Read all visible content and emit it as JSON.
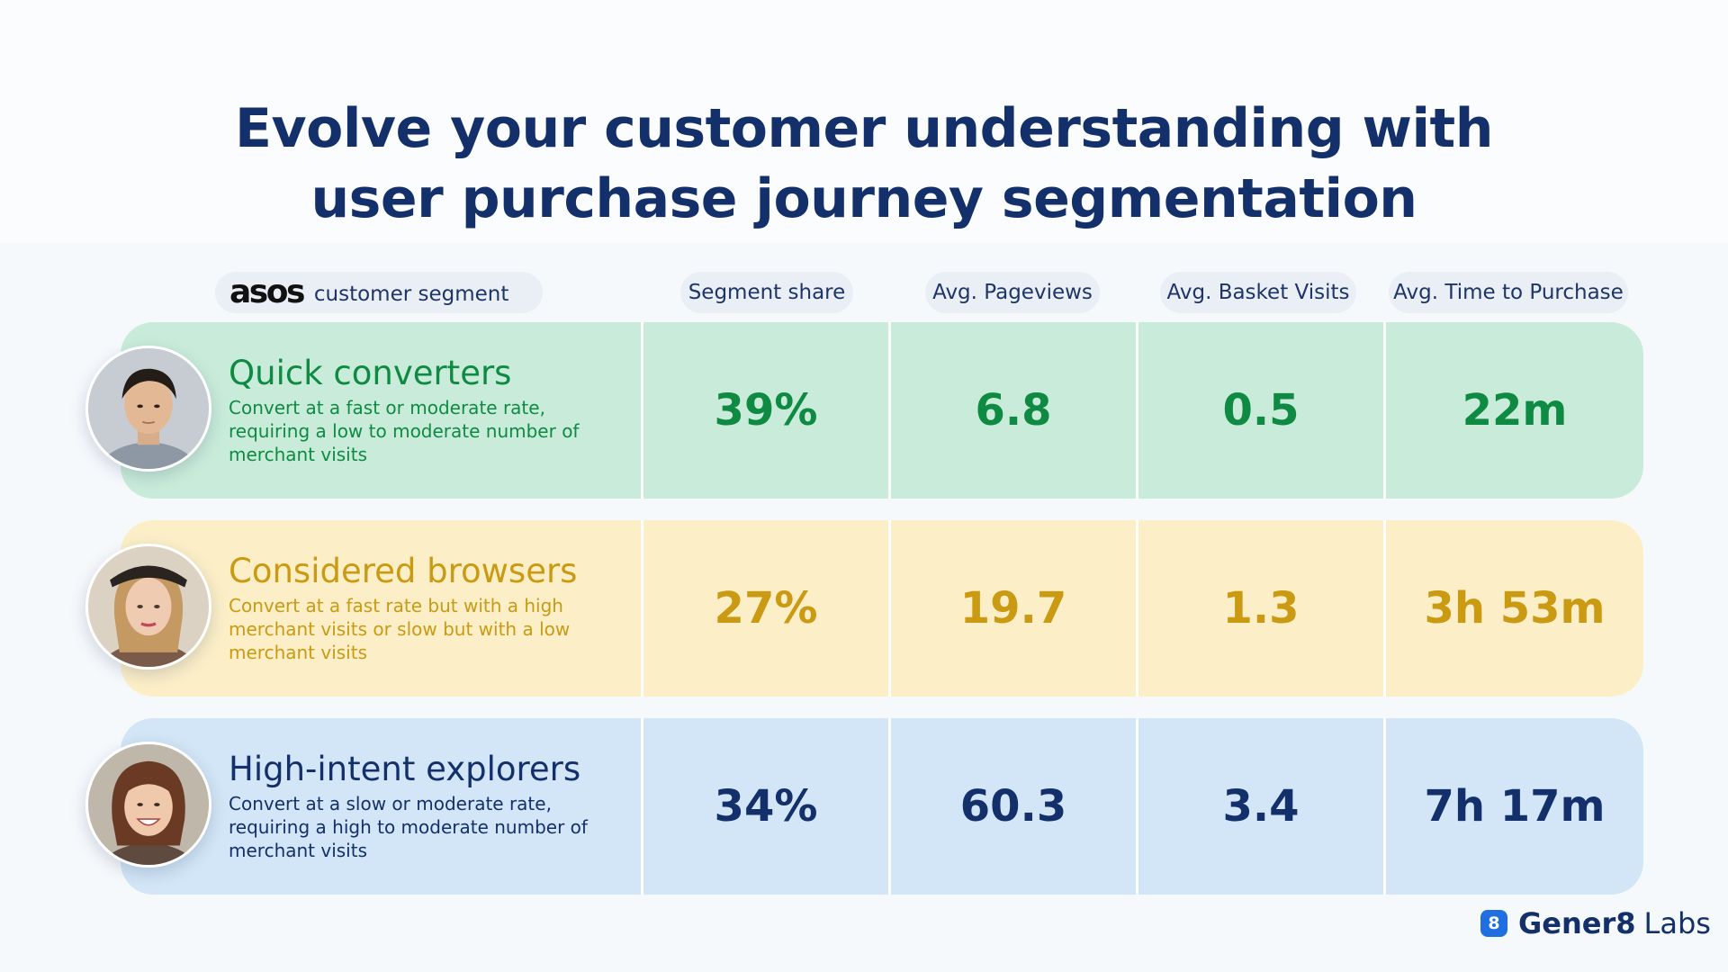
{
  "title_lines": [
    "Evolve your customer understanding with",
    "user purchase journey segmentation"
  ],
  "header": {
    "brand_logo": "asos",
    "segment_label": "customer segment",
    "columns": [
      "Segment share",
      "Avg. Pageviews",
      "Avg. Basket Visits",
      "Avg. Time to Purchase"
    ]
  },
  "chart_data": {
    "type": "table",
    "columns": [
      "customer segment",
      "Segment share",
      "Avg. Pageviews",
      "Avg. Basket Visits",
      "Avg. Time to Purchase"
    ],
    "rows": [
      {
        "name": "Quick converters",
        "description": "Convert at a fast or moderate rate, requiring a low to moderate number of merchant visits",
        "segment_share": "39%",
        "avg_pageviews": "6.8",
        "avg_basket_visits": "0.5",
        "avg_time_to_purchase": "22m",
        "row_color": "#c9ecda",
        "text_color": "#0f8a43"
      },
      {
        "name": "Considered browsers",
        "description": "Convert at a fast rate but with a high merchant visits or slow but with a low merchant visits",
        "segment_share": "27%",
        "avg_pageviews": "19.7",
        "avg_basket_visits": "1.3",
        "avg_time_to_purchase": "3h 53m",
        "row_color": "#fcefc8",
        "text_color": "#c99a12"
      },
      {
        "name": "High-intent explorers",
        "description": "Convert at a slow or moderate rate, requiring a high to moderate number of merchant visits",
        "segment_share": "34%",
        "avg_pageviews": "60.3",
        "avg_basket_visits": "3.4",
        "avg_time_to_purchase": "7h 17m",
        "row_color": "#d2e6f7",
        "text_color": "#14306b"
      }
    ]
  },
  "footer": {
    "badge_glyph": "8",
    "brand_name": "Gener8",
    "brand_suffix": "Labs"
  },
  "colors": {
    "title": "#14306b",
    "pill_background": "#eaeff6",
    "brand_badge": "#1f6fe0"
  },
  "icons": [
    "avatar-photo",
    "gener8-logo-icon"
  ]
}
